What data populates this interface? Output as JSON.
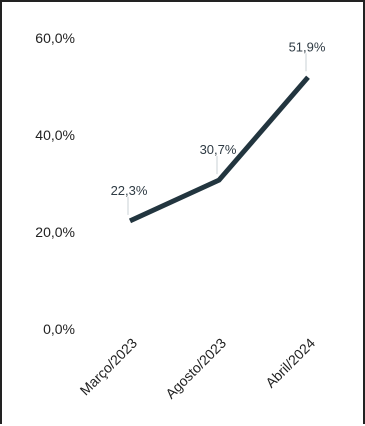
{
  "chart_data": {
    "type": "line",
    "title": "",
    "xlabel": "",
    "ylabel": "",
    "categories": [
      "Março/2023",
      "Agosto/2023",
      "Abril/2024"
    ],
    "series": [
      {
        "values": [
          22.3,
          30.7,
          51.9
        ],
        "data_labels": [
          "22,3%",
          "30,7%",
          "51,9%"
        ],
        "color": "#22353f"
      }
    ],
    "ylim": [
      0,
      60
    ],
    "y_ticks": [
      {
        "value": 0,
        "label": "0,0%"
      },
      {
        "value": 20,
        "label": "20,0%"
      },
      {
        "value": 40,
        "label": "40,0%"
      },
      {
        "value": 60,
        "label": "60,0%"
      }
    ],
    "grid": false,
    "legend": "none"
  }
}
